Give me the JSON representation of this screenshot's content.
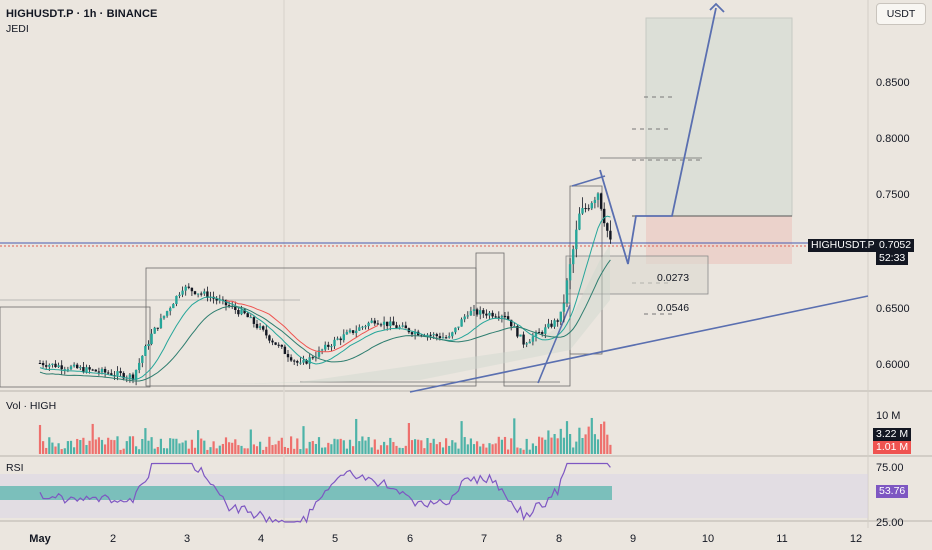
{
  "header": {
    "symbol_line": "HIGHUSDT.P · 1h · BINANCE",
    "indicator": "JEDI",
    "currency_button": "USDT"
  },
  "panes": {
    "volume_label": "Vol · HIGH",
    "rsi_label": "RSI"
  },
  "price_axis": {
    "ticks": [
      "0.8500",
      "0.8000",
      "0.7500",
      "0.6500",
      "0.6000"
    ],
    "tick_values": [
      0.85,
      0.8,
      0.75,
      0.65,
      0.6
    ],
    "current_symbol": "HIGHUSDT.P",
    "current_price": "0.7052",
    "countdown": "52:33"
  },
  "volume_axis": {
    "tick": "10 M",
    "last_up": "3.22 M",
    "last_down": "1.01 M"
  },
  "rsi_axis": {
    "upper": "75.00",
    "lower": "25.00",
    "current": "53.76"
  },
  "time_axis": [
    "May",
    "2",
    "3",
    "4",
    "5",
    "6",
    "7",
    "8",
    "9",
    "10",
    "11",
    "12"
  ],
  "annotations": {
    "level_1": "0.0273",
    "level_2": "0.0546"
  },
  "colors": {
    "background": "#ebe6df",
    "up": "#26a69a",
    "down": "#ef5350",
    "trendline": "#5a6fb0",
    "rsi_line": "#7e57c2",
    "current_price_line": "#e05a4f",
    "tp_zone": "#d9ddd6",
    "sl_zone": "#ebc9c2"
  },
  "chart_data": {
    "type": "candlestick",
    "symbol": "HIGHUSDT.P",
    "interval": "1h",
    "exchange": "BINANCE",
    "ylim": [
      0.58,
      0.89
    ],
    "x": [
      "May 1",
      "May 2",
      "May 3",
      "May 4",
      "May 5",
      "May 6",
      "May 7",
      "May 8",
      "May 9",
      "May 10",
      "May 11",
      "May 12"
    ],
    "close_path": [
      {
        "x": "May 1 00:00",
        "y": 0.6
      },
      {
        "x": "May 2 06:00",
        "y": 0.588
      },
      {
        "x": "May 2 12:00",
        "y": 0.625
      },
      {
        "x": "May 2 22:00",
        "y": 0.667
      },
      {
        "x": "May 3 06:00",
        "y": 0.66
      },
      {
        "x": "May 3 18:00",
        "y": 0.643
      },
      {
        "x": "May 4 06:00",
        "y": 0.612
      },
      {
        "x": "May 4 12:00",
        "y": 0.598
      },
      {
        "x": "May 5 00:00",
        "y": 0.621
      },
      {
        "x": "May 5 12:00",
        "y": 0.638
      },
      {
        "x": "May 6 00:00",
        "y": 0.628
      },
      {
        "x": "May 6 12:00",
        "y": 0.622
      },
      {
        "x": "May 6 18:00",
        "y": 0.645
      },
      {
        "x": "May 7 06:00",
        "y": 0.643
      },
      {
        "x": "May 7 12:00",
        "y": 0.618
      },
      {
        "x": "May 7 18:00",
        "y": 0.628
      },
      {
        "x": "May 8 00:00",
        "y": 0.64
      },
      {
        "x": "May 8 06:00",
        "y": 0.73
      },
      {
        "x": "May 8 12:00",
        "y": 0.752
      },
      {
        "x": "May 8 16:00",
        "y": 0.7052
      }
    ],
    "current_price": 0.7052,
    "volume_last": [
      "3.22 M",
      "1.01 M"
    ],
    "rsi_current": 53.76,
    "rsi_levels": [
      75,
      25
    ]
  }
}
